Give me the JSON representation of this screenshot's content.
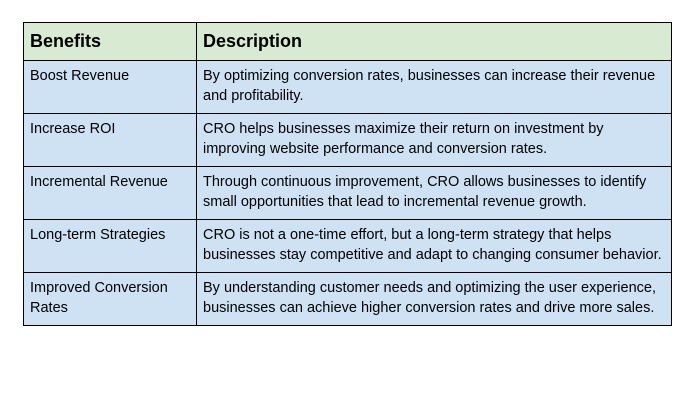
{
  "table": {
    "headers": [
      "Benefits",
      "Description"
    ],
    "rows": [
      {
        "benefit": "Boost Revenue",
        "description": "By optimizing conversion rates, businesses can increase their revenue and profitability."
      },
      {
        "benefit": "Increase ROI",
        "description": "CRO helps businesses maximize their return on investment by improving website performance and conversion rates."
      },
      {
        "benefit": "Incremental Revenue",
        "description": "Through continuous improvement, CRO allows businesses to identify small opportunities that lead to incremental revenue growth."
      },
      {
        "benefit": "Long-term Strategies",
        "description": "CRO is not a one-time effort, but a long-term strategy that helps businesses stay competitive and adapt to changing consumer behavior."
      },
      {
        "benefit": "Improved Conversion Rates",
        "description": "By understanding customer needs and optimizing the user experience, businesses can achieve higher conversion rates and drive more sales."
      }
    ],
    "colors": {
      "header_bg": "#d9ead3",
      "cell_bg": "#cfe2f3",
      "border": "#000000"
    }
  }
}
